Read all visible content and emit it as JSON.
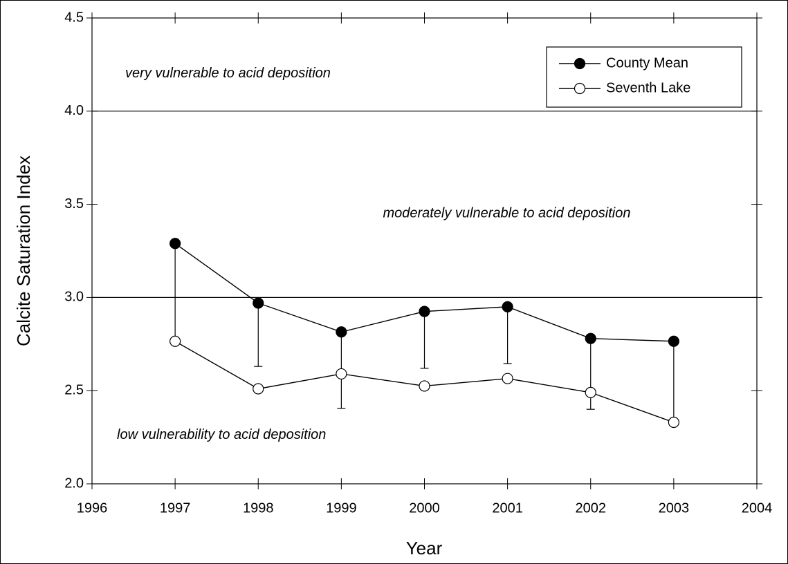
{
  "chart_data": {
    "type": "line",
    "x_label": "Year",
    "y_label": "Calcite Saturation Index",
    "xlim": [
      1996,
      2004
    ],
    "xticks": [
      1996,
      1997,
      1998,
      1999,
      2000,
      2001,
      2002,
      2003,
      2004
    ],
    "ylim": [
      2.0,
      4.5
    ],
    "yticks": [
      {
        "value": 2.0,
        "label": "2.0"
      },
      2.5,
      {
        "value": 3.0,
        "label": "3.0"
      },
      3.5,
      {
        "value": 4.0,
        "label": "4.0"
      },
      4.5
    ],
    "reference_lines": [
      4.0,
      3.0
    ],
    "legend_position": "upper right",
    "x": [
      1997,
      1998,
      1999,
      2000,
      2001,
      2002,
      2003
    ],
    "series": [
      {
        "name": "County Mean",
        "color": "#000000",
        "marker_fill": "#000000",
        "values": [
          3.29,
          2.97,
          2.815,
          2.925,
          2.95,
          2.78,
          2.765
        ],
        "errors": [
          0.53,
          0.34,
          0.41,
          0.305,
          0.305,
          0.38,
          0.435
        ]
      },
      {
        "name": "Seventh Lake",
        "color": "#000000",
        "marker_fill": "#ffffff",
        "values": [
          2.765,
          2.51,
          2.59,
          2.525,
          2.565,
          2.49,
          2.33
        ]
      }
    ],
    "annotations": [
      {
        "text": "very vulnerable to acid deposition",
        "x": 1996.4,
        "y": 4.2
      },
      {
        "text": "moderately vulnerable to acid deposition",
        "x": 1999.5,
        "y": 3.45
      },
      {
        "text": "low vulnerability to acid deposition",
        "x": 1996.3,
        "y": 2.26
      }
    ]
  }
}
